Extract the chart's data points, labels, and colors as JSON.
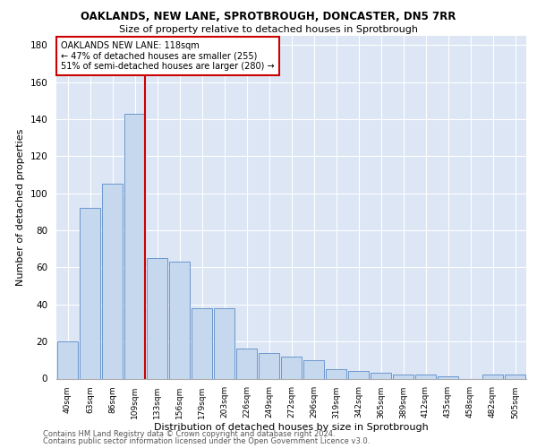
{
  "title_line1": "OAKLANDS, NEW LANE, SPROTBROUGH, DONCASTER, DN5 7RR",
  "title_line2": "Size of property relative to detached houses in Sprotbrough",
  "xlabel": "Distribution of detached houses by size in Sprotbrough",
  "ylabel": "Number of detached properties",
  "bar_color": "#c5d8ed",
  "bar_edge_color": "#5b8cc8",
  "categories": [
    "40sqm",
    "63sqm",
    "86sqm",
    "109sqm",
    "133sqm",
    "156sqm",
    "179sqm",
    "203sqm",
    "226sqm",
    "249sqm",
    "272sqm",
    "296sqm",
    "319sqm",
    "342sqm",
    "365sqm",
    "389sqm",
    "412sqm",
    "435sqm",
    "458sqm",
    "482sqm",
    "505sqm"
  ],
  "values": [
    20,
    92,
    105,
    143,
    65,
    63,
    38,
    38,
    16,
    14,
    12,
    10,
    5,
    4,
    3,
    2,
    2,
    1,
    0,
    2,
    2
  ],
  "annotation_title": "OAKLANDS NEW LANE: 118sqm",
  "annotation_line1": "← 47% of detached houses are smaller (255)",
  "annotation_line2": "51% of semi-detached houses are larger (280) →",
  "annotation_box_color": "#ffffff",
  "annotation_box_edge_color": "#cc0000",
  "vline_color": "#cc0000",
  "ylim": [
    0,
    185
  ],
  "yticks": [
    0,
    20,
    40,
    60,
    80,
    100,
    120,
    140,
    160,
    180
  ],
  "bg_color": "#dce6f5",
  "grid_color": "#ffffff",
  "footer_line1": "Contains HM Land Registry data © Crown copyright and database right 2024.",
  "footer_line2": "Contains public sector information licensed under the Open Government Licence v3.0."
}
